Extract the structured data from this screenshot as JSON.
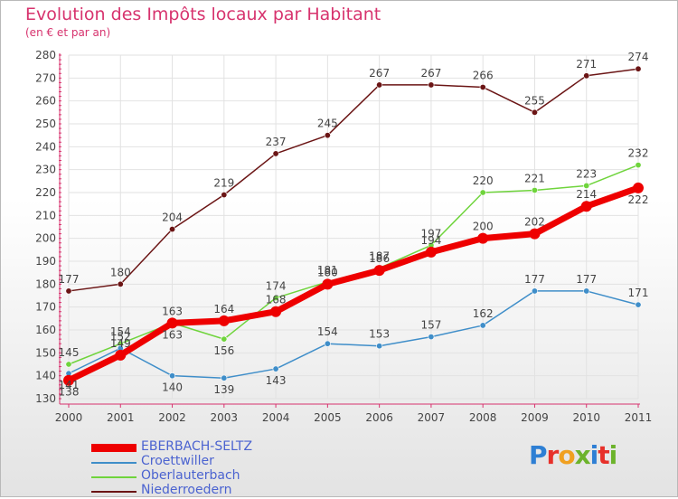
{
  "header": {
    "title": "Evolution des Impôts locaux par Habitant",
    "subtitle": "(en € et par an)"
  },
  "brand": {
    "text": "Proxiti",
    "colors": [
      "#2e7fd4",
      "#e7302a",
      "#f0a020",
      "#6cb32b",
      "#2e7fd4",
      "#e7302a",
      "#6cb32b"
    ]
  },
  "chart_data": {
    "type": "line",
    "title": "Evolution des Impôts locaux par Habitant",
    "subtitle": "(en € et par an)",
    "x": [
      "2000",
      "2001",
      "2002",
      "2003",
      "2004",
      "2005",
      "2006",
      "2007",
      "2008",
      "2009",
      "2010",
      "2011"
    ],
    "ylim": [
      130,
      280
    ],
    "yticks": [
      130,
      140,
      150,
      160,
      170,
      180,
      190,
      200,
      210,
      220,
      230,
      240,
      250,
      260,
      270,
      280
    ],
    "grid": true,
    "legend_position": "bottom-left",
    "series": [
      {
        "name": "EBERBACH-SELTZ",
        "color": "#ee0000",
        "values": [
          138,
          149,
          163,
          164,
          168,
          180,
          186,
          194,
          200,
          202,
          214,
          222
        ]
      },
      {
        "name": "Croettwiller",
        "color": "#3f8ec9",
        "values": [
          141,
          152,
          140,
          139,
          143,
          154,
          153,
          157,
          162,
          177,
          177,
          171
        ]
      },
      {
        "name": "Oberlauterbach",
        "color": "#6fd43c",
        "values": [
          145,
          154,
          163,
          156,
          174,
          181,
          187,
          197,
          220,
          221,
          223,
          232
        ]
      },
      {
        "name": "Niederroedern",
        "color": "#6b1515",
        "values": [
          177,
          180,
          204,
          219,
          237,
          245,
          267,
          267,
          266,
          255,
          271,
          274
        ]
      }
    ]
  }
}
